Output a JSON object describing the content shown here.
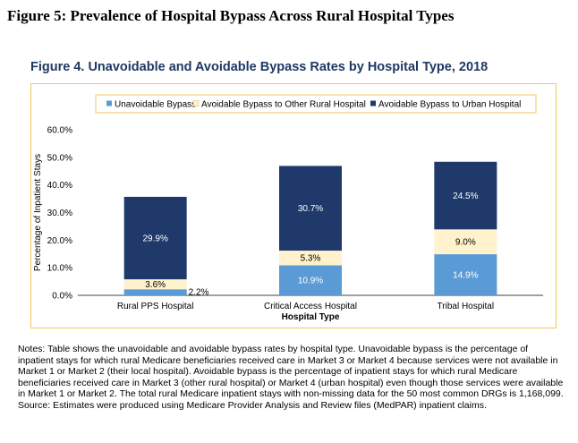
{
  "figure_heading": "Figure 5: Prevalence of Hospital Bypass Across Rural Hospital Types",
  "colors": {
    "unavoidable": "#5b9bd5",
    "other_rural": "#fff2cc",
    "urban": "#1f3a6a",
    "title": "#1f3864",
    "frame": "#f2c75c"
  },
  "chart_data": {
    "type": "bar",
    "stacked": true,
    "title": "Figure 4. Unavoidable and Avoidable Bypass Rates by Hospital Type, 2018",
    "xlabel": "Hospital Type",
    "ylabel": "Percentage of Inpatient Stays",
    "ylim": [
      0,
      60
    ],
    "yticks": [
      "0.0%",
      "10.0%",
      "20.0%",
      "30.0%",
      "40.0%",
      "50.0%",
      "60.0%"
    ],
    "categories": [
      "Rural PPS Hospital",
      "Critical Access Hospital",
      "Tribal Hospital"
    ],
    "series": [
      {
        "name": "Unavoidable Bypass",
        "values": [
          2.2,
          10.9,
          14.9
        ],
        "labels": [
          "2.2%",
          "10.9%",
          "14.9%"
        ]
      },
      {
        "name": "Avoidable Bypass to Other Rural Hospital",
        "values": [
          3.6,
          5.3,
          9.0
        ],
        "labels": [
          "3.6%",
          "5.3%",
          "9.0%"
        ]
      },
      {
        "name": "Avoidable Bypass to Urban Hospital",
        "values": [
          29.9,
          30.7,
          24.5
        ],
        "labels": [
          "29.9%",
          "30.7%",
          "24.5%"
        ]
      }
    ],
    "legend_position": "top",
    "grid": false
  },
  "notes": [
    "Notes: Table shows the unavoidable and avoidable bypass rates by hospital type. Unavoidable bypass is the percentage of inpatient stays for which rural Medicare beneficiaries received care in Market 3 or Market 4 because services were not available in Market 1 or Market 2 (their local hospital). Avoidable bypass is the percentage of inpatient stays for which rural Medicare beneficiaries received care in Market 3 (other rural hospital) or Market 4 (urban hospital) even though those services were available in Market 1 or Market 2. The total rural Medicare inpatient stays with non-missing data for the 50 most common DRGs is 1,168,099.",
    "Source: Estimates were produced using Medicare Provider Analysis and Review files (MedPAR) inpatient claims."
  ]
}
